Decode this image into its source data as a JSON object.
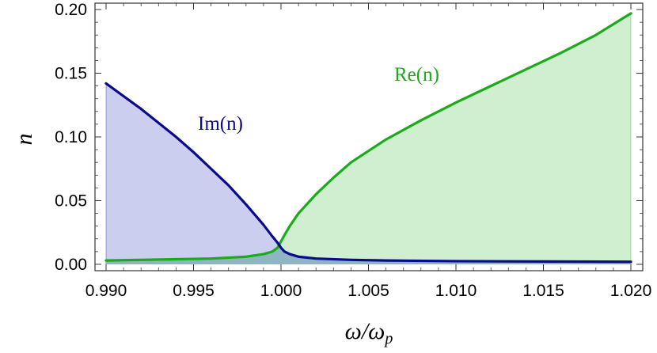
{
  "chart_data": {
    "type": "area",
    "xlabel": "ω/ωp",
    "ylabel": "n",
    "xlim": [
      0.99,
      1.02
    ],
    "ylim": [
      -0.005,
      0.205
    ],
    "x_ticks": [
      "0.990",
      "0.995",
      "1.000",
      "1.005",
      "1.010",
      "1.015",
      "1.020"
    ],
    "x_tick_values": [
      0.99,
      0.995,
      1.0,
      1.005,
      1.01,
      1.015,
      1.02
    ],
    "y_ticks": [
      "0.00",
      "0.05",
      "0.10",
      "0.15",
      "0.20"
    ],
    "y_tick_values": [
      0.0,
      0.05,
      0.1,
      0.15,
      0.2
    ],
    "grid": false,
    "series": [
      {
        "name": "Im(n)",
        "color": "#0a0a8c",
        "fill": "#c9cbee",
        "x": [
          0.99,
          0.991,
          0.992,
          0.993,
          0.994,
          0.995,
          0.996,
          0.997,
          0.998,
          0.999,
          0.9995,
          0.9998,
          1.0,
          1.0002,
          1.0005,
          1.001,
          1.002,
          1.004,
          1.006,
          1.01,
          1.015,
          1.02
        ],
        "values": [
          0.142,
          0.132,
          0.122,
          0.111,
          0.1,
          0.088,
          0.075,
          0.062,
          0.047,
          0.031,
          0.022,
          0.017,
          0.013,
          0.01,
          0.008,
          0.006,
          0.0045,
          0.0035,
          0.003,
          0.0025,
          0.0022,
          0.002
        ]
      },
      {
        "name": "Re(n)",
        "color": "#1aaa1a",
        "fill": "#cdeecd",
        "x": [
          0.99,
          0.992,
          0.994,
          0.996,
          0.998,
          0.999,
          0.9995,
          0.9998,
          1.0,
          1.0002,
          1.0005,
          1.001,
          1.002,
          1.003,
          1.004,
          1.006,
          1.008,
          1.01,
          1.012,
          1.014,
          1.016,
          1.018,
          1.02
        ],
        "values": [
          0.003,
          0.0035,
          0.004,
          0.0045,
          0.006,
          0.008,
          0.01,
          0.013,
          0.018,
          0.023,
          0.03,
          0.04,
          0.055,
          0.068,
          0.08,
          0.098,
          0.113,
          0.127,
          0.14,
          0.153,
          0.166,
          0.18,
          0.197
        ]
      }
    ],
    "overlap_fill": "#8fb5c3"
  }
}
